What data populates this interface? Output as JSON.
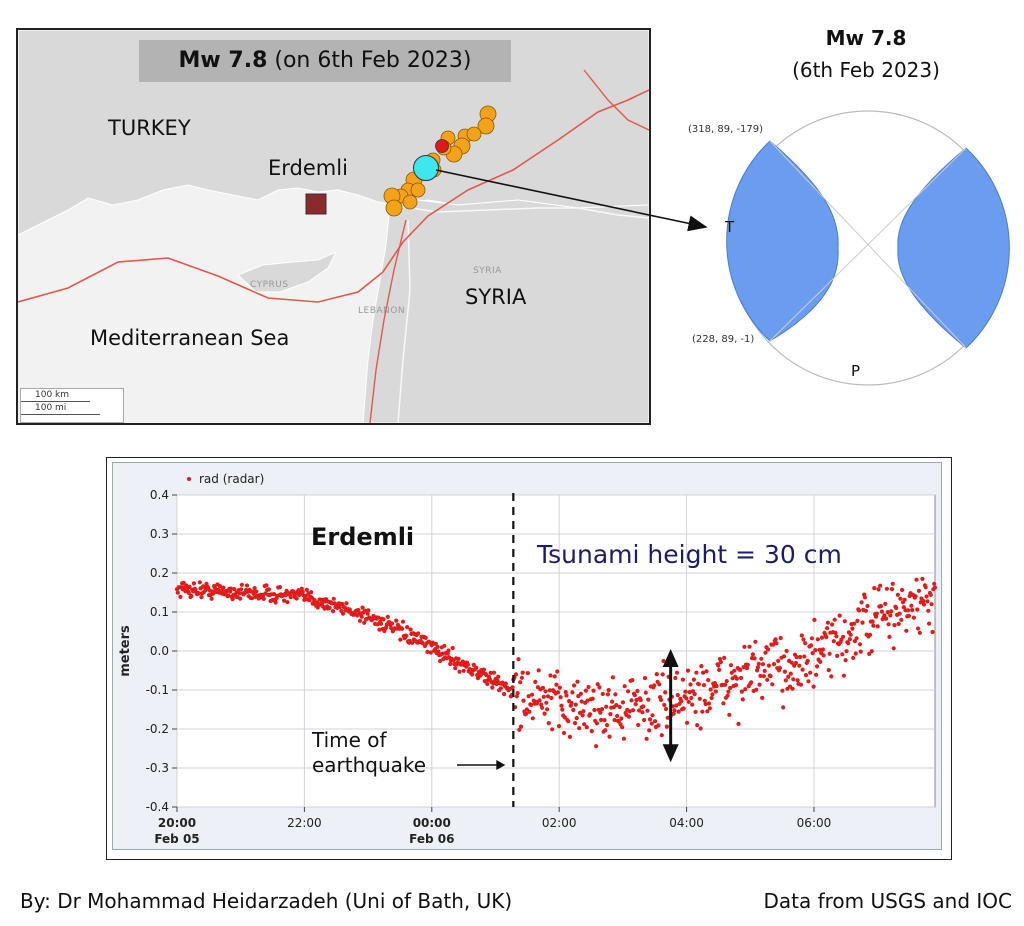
{
  "map": {
    "title_bold": "Mw 7.8",
    "title_rest": "(on 6th Feb 2023)",
    "labels": {
      "turkey": "TURKEY",
      "erdemli": "Erdemli",
      "syria": "SYRIA",
      "syria_small": "SYRIA",
      "cyprus_small": "CYPRUS",
      "lebanon_small": "LEBANON",
      "sea": "Mediterranean Sea"
    },
    "scale": {
      "km": "100 km",
      "mi": "100 mi"
    },
    "colors": {
      "land": "#d9d9d9",
      "sea": "#f2f2f2",
      "fault": "#e05a4a",
      "aftershock": "#f5a21b",
      "mainshock": "#3ee6ee",
      "epicenter": "#e01919",
      "station": "#8b2a2a"
    }
  },
  "beachball": {
    "title_bold": "Mw 7.8",
    "subtitle": "(6th Feb 2023)",
    "plane1": "(318, 89, -179)",
    "plane2": "(228, 89, -1)",
    "t_axis": "T",
    "p_axis": "P",
    "color": "#6a9df0"
  },
  "chart_data": {
    "type": "scatter",
    "legend": "rad (radar)",
    "ylabel": "meters",
    "ylim": [
      -0.4,
      0.4
    ],
    "yticks": [
      "0.4",
      "0.3",
      "0.2",
      "0.1",
      "0.0",
      "-0.1",
      "-0.2",
      "-0.3",
      "-0.4"
    ],
    "xticks": [
      {
        "time": "20:00",
        "date": "Feb 05",
        "bold": true
      },
      {
        "time": "22:00",
        "date": "",
        "bold": false
      },
      {
        "time": "00:00",
        "date": "Feb 06",
        "bold": true
      },
      {
        "time": "02:00",
        "date": "",
        "bold": false
      },
      {
        "time": "04:00",
        "date": "",
        "bold": false
      },
      {
        "time": "06:00",
        "date": "",
        "bold": false
      }
    ],
    "x_range_hours": [
      0,
      11.9
    ],
    "earthquake_time_hours": 5.28,
    "station_label": "Erdemli",
    "tsunami_label": "Tsunami height = 30 cm",
    "eq_label_line1": "Time of",
    "eq_label_line2": "earthquake",
    "tsunami_arrow": {
      "x_hours": 7.75,
      "y_top": 0.0,
      "y_bottom": -0.28
    },
    "series": [
      {
        "name": "rad (radar)",
        "color": "#e31b1b",
        "trend": {
          "x": [
            0,
            1,
            2,
            3,
            4,
            5,
            5.5,
            6,
            7,
            8,
            9,
            10,
            10.5,
            11,
            11.9
          ],
          "y": [
            0.16,
            0.15,
            0.14,
            0.09,
            0.01,
            -0.08,
            -0.12,
            -0.14,
            -0.15,
            -0.12,
            -0.06,
            -0.02,
            0.03,
            0.09,
            0.13
          ]
        },
        "noise_before": 0.025,
        "noise_after": 0.1
      }
    ]
  },
  "footer": {
    "left": "By: Dr Mohammad Heidarzadeh (Uni of Bath, UK)",
    "right": "Data from USGS and IOC"
  }
}
